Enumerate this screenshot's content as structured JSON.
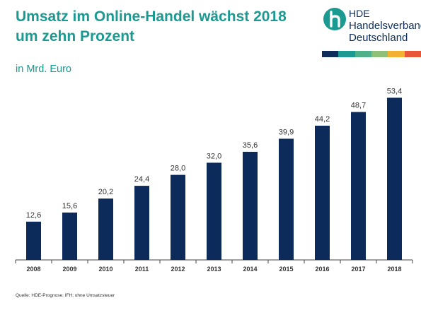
{
  "header": {
    "title": "Umsatz im Online-Handel wächst 2018 um zehn Prozent",
    "subtitle": "in Mrd. Euro"
  },
  "logo": {
    "line1": "HDE",
    "line2": "Handelsverband",
    "line3": "Deutschland",
    "mark_icon": "hde-h-logo-icon",
    "strip_colors": [
      "#0e2d5a",
      "#1a9a90",
      "#4fb08a",
      "#8fc07a",
      "#f2b133",
      "#e8563a"
    ]
  },
  "colors": {
    "title": "#1a9a90",
    "bar": "#0c2b5a",
    "axis": "#444444"
  },
  "chart_data": {
    "type": "bar",
    "categories": [
      "2008",
      "2009",
      "2010",
      "2011",
      "2012",
      "2013",
      "2014",
      "2015",
      "2016",
      "2017",
      "2018"
    ],
    "values": [
      12.6,
      15.6,
      20.2,
      24.4,
      28.0,
      32.0,
      35.6,
      39.9,
      44.2,
      48.7,
      53.4
    ],
    "value_labels": [
      "12,6",
      "15,6",
      "20,2",
      "24,4",
      "28,0",
      "32,0",
      "35,6",
      "39,9",
      "44,2",
      "48,7",
      "53,4"
    ],
    "title": "Umsatz im Online-Handel wächst 2018 um zehn Prozent",
    "ylabel": "in Mrd. Euro",
    "ylim": [
      0,
      55
    ],
    "grid": false,
    "legend": "none"
  },
  "footer": {
    "source": "Quelle: HDE-Prognose; IFH; ohne Umsatzsteuer"
  }
}
